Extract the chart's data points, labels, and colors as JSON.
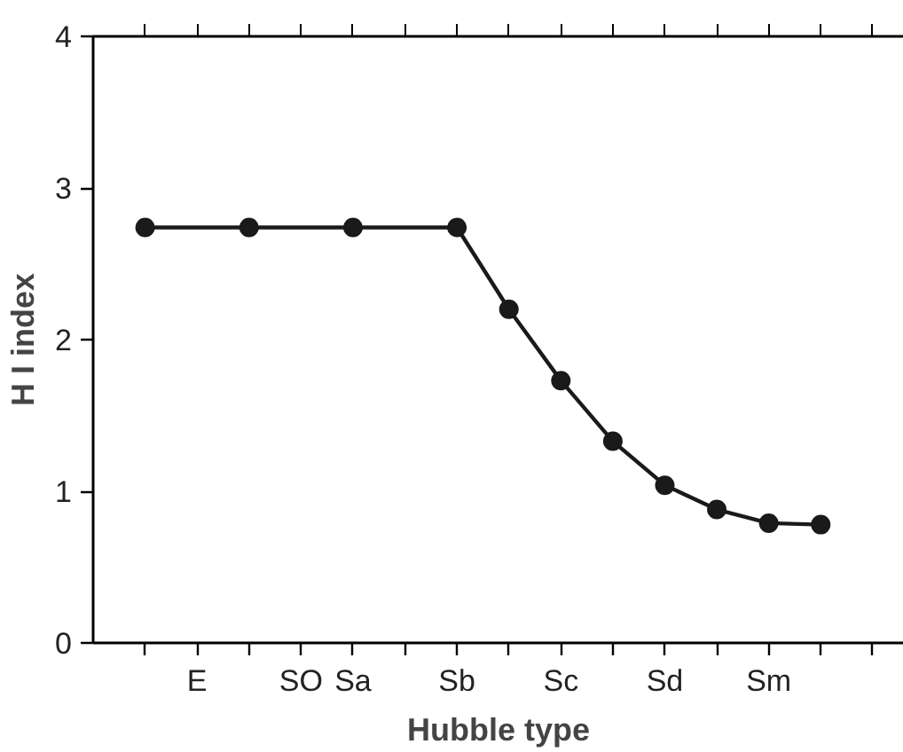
{
  "chart_data": {
    "type": "line",
    "xlabel": "Hubble type",
    "ylabel": "H I index",
    "categories": [
      null,
      "E",
      null,
      "SO",
      "Sa",
      null,
      "Sb",
      null,
      "Sc",
      null,
      "Sd",
      null,
      "Sm",
      null,
      null
    ],
    "series": [
      {
        "color": "#1a1a1a",
        "values": [
          2.74,
          null,
          2.74,
          null,
          2.74,
          null,
          2.74,
          2.2,
          1.73,
          1.33,
          1.04,
          0.88,
          0.79,
          0.78,
          null
        ]
      }
    ],
    "ylim": [
      0,
      4
    ],
    "yticks": [
      0,
      1,
      2,
      3,
      4
    ],
    "marker": "circle",
    "line_style": "solid"
  }
}
